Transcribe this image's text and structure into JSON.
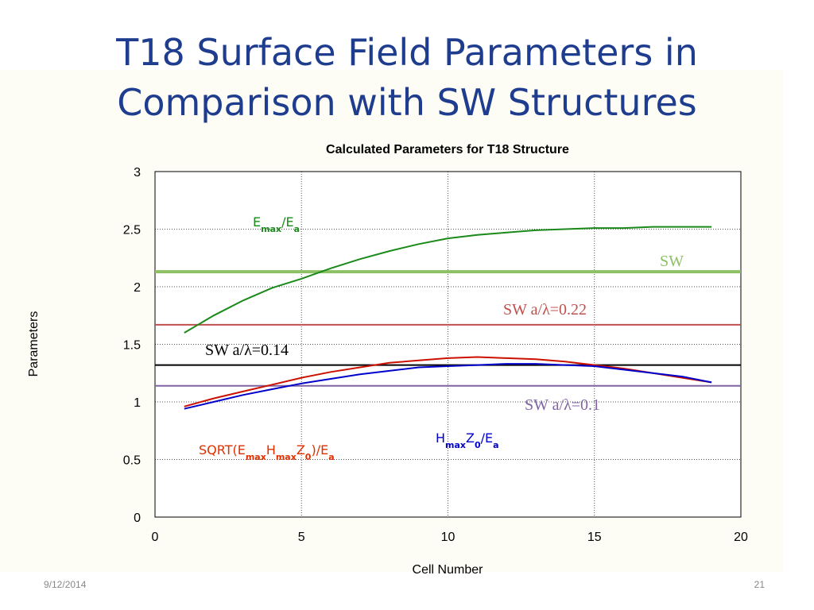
{
  "slide": {
    "title": [
      "T18 Surface Field Parameters in",
      "Comparison with SW Structures"
    ],
    "date": "9/12/2014",
    "page": "21"
  },
  "chart_data": {
    "type": "line",
    "title": "Calculated Parameters for T18 Structure",
    "xlabel": "Cell Number",
    "ylabel": "Parameters",
    "xlim": [
      0,
      20
    ],
    "xticks": [
      0,
      5,
      10,
      15,
      20
    ],
    "ylim": [
      0,
      3
    ],
    "yticks": [
      0,
      0.5,
      1,
      1.5,
      2,
      2.5,
      3
    ],
    "grid": true,
    "x": [
      1,
      2,
      3,
      4,
      5,
      6,
      7,
      8,
      9,
      10,
      11,
      12,
      13,
      14,
      15,
      16,
      17,
      18,
      19
    ],
    "series": [
      {
        "label": [
          {
            "text": "E"
          },
          {
            "text": "max",
            "sub": true
          },
          {
            "text": "/E"
          },
          {
            "text": "a",
            "sub": true
          }
        ],
        "color": "#1a8a1a",
        "values": [
          1.6,
          1.75,
          1.88,
          1.99,
          2.07,
          2.16,
          2.24,
          2.31,
          2.37,
          2.42,
          2.45,
          2.47,
          2.49,
          2.5,
          2.51,
          2.51,
          2.52,
          2.52,
          2.52
        ]
      },
      {
        "label": [
          {
            "text": "SQRT(E"
          },
          {
            "text": "max",
            "sub": true
          },
          {
            "text": "H"
          },
          {
            "text": "max",
            "sub": true
          },
          {
            "text": "Z"
          },
          {
            "text": "0",
            "sub": true
          },
          {
            "text": ")/E"
          },
          {
            "text": "a",
            "sub": true
          }
        ],
        "color": "#cc1100",
        "values": [
          0.96,
          1.03,
          1.09,
          1.15,
          1.21,
          1.26,
          1.3,
          1.34,
          1.36,
          1.38,
          1.39,
          1.38,
          1.37,
          1.35,
          1.32,
          1.29,
          1.25,
          1.21,
          1.17
        ]
      },
      {
        "label": [
          {
            "text": "H"
          },
          {
            "text": "max",
            "sub": true
          },
          {
            "text": "Z"
          },
          {
            "text": "0",
            "sub": true
          },
          {
            "text": "/E"
          },
          {
            "text": "a",
            "sub": true
          }
        ],
        "color": "#0000cc",
        "values": [
          0.94,
          1.0,
          1.06,
          1.11,
          1.16,
          1.2,
          1.24,
          1.27,
          1.3,
          1.31,
          1.32,
          1.33,
          1.33,
          1.32,
          1.31,
          1.28,
          1.25,
          1.22,
          1.17
        ]
      }
    ],
    "reference_lines": [
      {
        "name": "SW",
        "value": 2.13,
        "color": "#8cc063"
      },
      {
        "name": "SW a/λ=0.22",
        "value": 1.67,
        "color": "#c0504d"
      },
      {
        "name": "SW a/λ=0.14",
        "value": 1.32,
        "color": "#000000"
      },
      {
        "name": "SW a/λ=0.1",
        "value": 1.14,
        "color": "#8064a2"
      }
    ]
  }
}
